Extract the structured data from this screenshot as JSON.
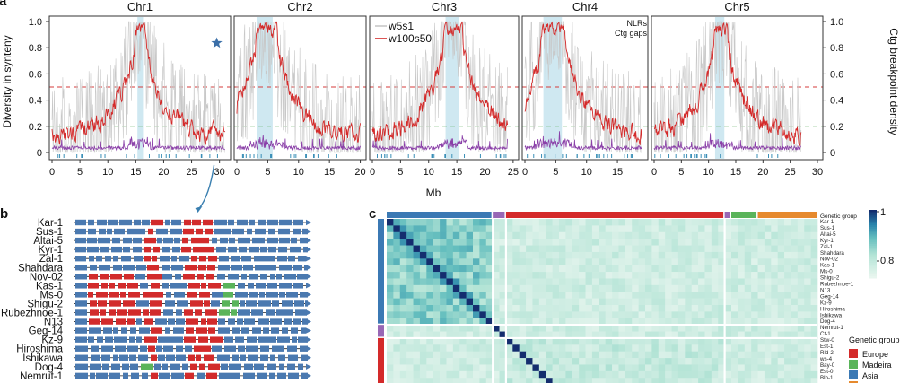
{
  "panels": {
    "a": "a",
    "b": "b",
    "c": "c"
  },
  "chart_data": [
    {
      "type": "line",
      "chromosomes": [
        {
          "name": "Chr1",
          "length_mb": 31,
          "xticks": [
            0,
            5,
            10,
            15,
            20,
            25,
            30
          ],
          "centromere_mb": [
            14.7,
            16.7
          ],
          "nlr_cluster_mb": [
            15.3,
            16.3
          ],
          "star_mb": 29.5
        },
        {
          "name": "Chr2",
          "length_mb": 20,
          "xticks": [
            0,
            5,
            10,
            15,
            20
          ],
          "centromere_mb": [
            3.0,
            6.5
          ],
          "nlr_cluster_mb": [
            3.2,
            5.8
          ]
        },
        {
          "name": "Chr3",
          "length_mb": 24,
          "xticks": [
            0,
            5,
            10,
            15,
            20,
            25
          ],
          "centromere_mb": [
            12.5,
            16.0
          ],
          "nlr_cluster_mb": [
            13.0,
            15.4
          ]
        },
        {
          "name": "Chr4",
          "length_mb": 19,
          "xticks": [
            0,
            5,
            10,
            15
          ],
          "centromere_mb": [
            2.5,
            6.5
          ],
          "nlr_cluster_mb": [
            3.0,
            6.0
          ]
        },
        {
          "name": "Chr5",
          "length_mb": 27,
          "xticks": [
            0,
            5,
            10,
            15,
            20,
            25,
            30
          ],
          "centromere_mb": [
            10.8,
            13.5
          ],
          "nlr_cluster_mb": [
            11.2,
            12.9
          ]
        }
      ],
      "xlabel": "Mb",
      "ylabel_left": "Diversity in synteny",
      "ylabel_right": "Ctg breakpoint density",
      "ylim": [
        0,
        1
      ],
      "yticks": [
        "0",
        "0.2",
        "0.4",
        "0.6",
        "0.8",
        "1.0"
      ],
      "thresholds": [
        {
          "y": 0.5,
          "color": "#d43b3b"
        },
        {
          "y": 0.2,
          "color": "#5fae5f"
        }
      ],
      "series": [
        {
          "name": "w5s1",
          "color": "#c8c8c8"
        },
        {
          "name": "w100s50",
          "color": "#d42a2a"
        }
      ],
      "annotations": [
        {
          "text": "NLRs",
          "color": "#3a8fb7"
        },
        {
          "text": "Ctg gaps",
          "color": "#a15db8"
        }
      ],
      "colors": {
        "centromere": "#cfe8f1",
        "breakpoint": "#8a3fa8",
        "nlr_tick": "#3a8fb7"
      }
    },
    {
      "type": "table",
      "samples": [
        "Kar-1",
        "Sus-1",
        "Altai-5",
        "Kyr-1",
        "Zal-1",
        "Shahdara",
        "Nov-02",
        "Kas-1",
        "Ms-0",
        "Shigu-2",
        "Rubezhnoe-1",
        "N13",
        "Geg-14",
        "Kz-9",
        "Hiroshima",
        "Ishikawa",
        "Dog-4",
        "Nemrut-1"
      ],
      "colors": {
        "gene": "#4a79b0",
        "variant_a": "#d22b2b",
        "variant_b": "#5ab45a",
        "line": "#222222"
      }
    },
    {
      "type": "heatmap",
      "row_labels": [
        "Kar-1",
        "Sus-1",
        "Altai-5",
        "Kyr-1",
        "Zal-1",
        "Shahdara",
        "Nov-02",
        "Kas-1",
        "Ms-0",
        "Shigu-2",
        "Rubezhnoe-1",
        "N13",
        "Geg-14",
        "Kz-9",
        "Hiroshima",
        "Ishikawa",
        "Dog-4",
        "Nemrut-1",
        "Ct-1",
        "Stw-0",
        "Est-1",
        "Rld-2",
        "ws-4",
        "Bay-0",
        "Est-0",
        "Blh-1"
      ],
      "top_bar_label": "Genetic group",
      "groups_top": [
        {
          "group": "Asia",
          "count": 16
        },
        {
          "group": "Madeira",
          "count": 2
        },
        {
          "group": "Europe",
          "count": 33
        },
        {
          "group": "Madeira",
          "count": 1
        },
        {
          "group": "Madeira2",
          "count": 4
        },
        {
          "group": "Africa",
          "count": 9
        }
      ],
      "colorbar": {
        "ticks": [
          "1",
          "0.8"
        ],
        "min": 0.7,
        "max": 1.0
      },
      "legend_title": "Genetic group",
      "legend": [
        {
          "name": "Europe",
          "color": "#d42a2a"
        },
        {
          "name": "Madeira",
          "color": "#5ab45a"
        },
        {
          "name": "Asia",
          "color": "#3b79b4"
        },
        {
          "name": "Africa",
          "color": "#e68a2e"
        }
      ],
      "colors": {
        "madeira_small": "#9867b5"
      }
    }
  ]
}
